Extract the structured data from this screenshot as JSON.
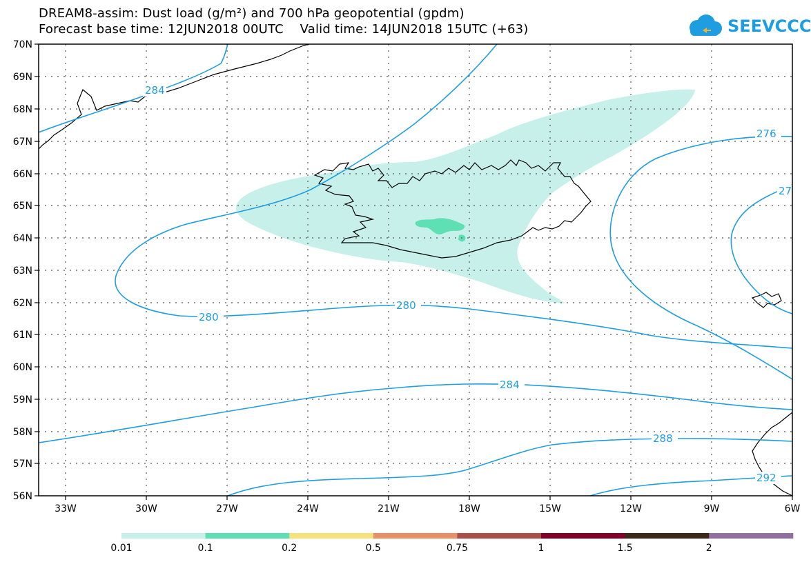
{
  "header": {
    "title_line1": "DREAM8-assim: Dust load (g/m²) and 700 hPa geopotential (gpdm)",
    "title_line2": "Forecast base time: 12JUN2018 00UTC    Valid time: 14JUN2018 15UTC (+63)",
    "logo_text": "SEEVCCC",
    "logo_color": "#1e9ee0"
  },
  "map": {
    "lat_labels": [
      "70N",
      "69N",
      "68N",
      "67N",
      "66N",
      "65N",
      "64N",
      "63N",
      "62N",
      "61N",
      "60N",
      "59N",
      "58N",
      "57N",
      "56N"
    ],
    "lon_labels": [
      "33W",
      "30W",
      "27W",
      "24W",
      "21W",
      "18W",
      "15W",
      "12W",
      "9W",
      "6W"
    ],
    "contour_color": "#1e9ee0",
    "coast_color": "#000000",
    "contour_labels": [
      "284",
      "280",
      "280",
      "276",
      "27",
      "284",
      "288",
      "292"
    ]
  },
  "legend": {
    "colors": [
      "#c8f0ea",
      "#5ee0b4",
      "#f6e27a",
      "#e89068",
      "#a85048",
      "#800028",
      "#3c2818",
      "#9070a0"
    ],
    "labels": [
      "0.01",
      "0.1",
      "0.2",
      "0.5",
      "0.75",
      "1",
      "1.5",
      "2"
    ]
  }
}
